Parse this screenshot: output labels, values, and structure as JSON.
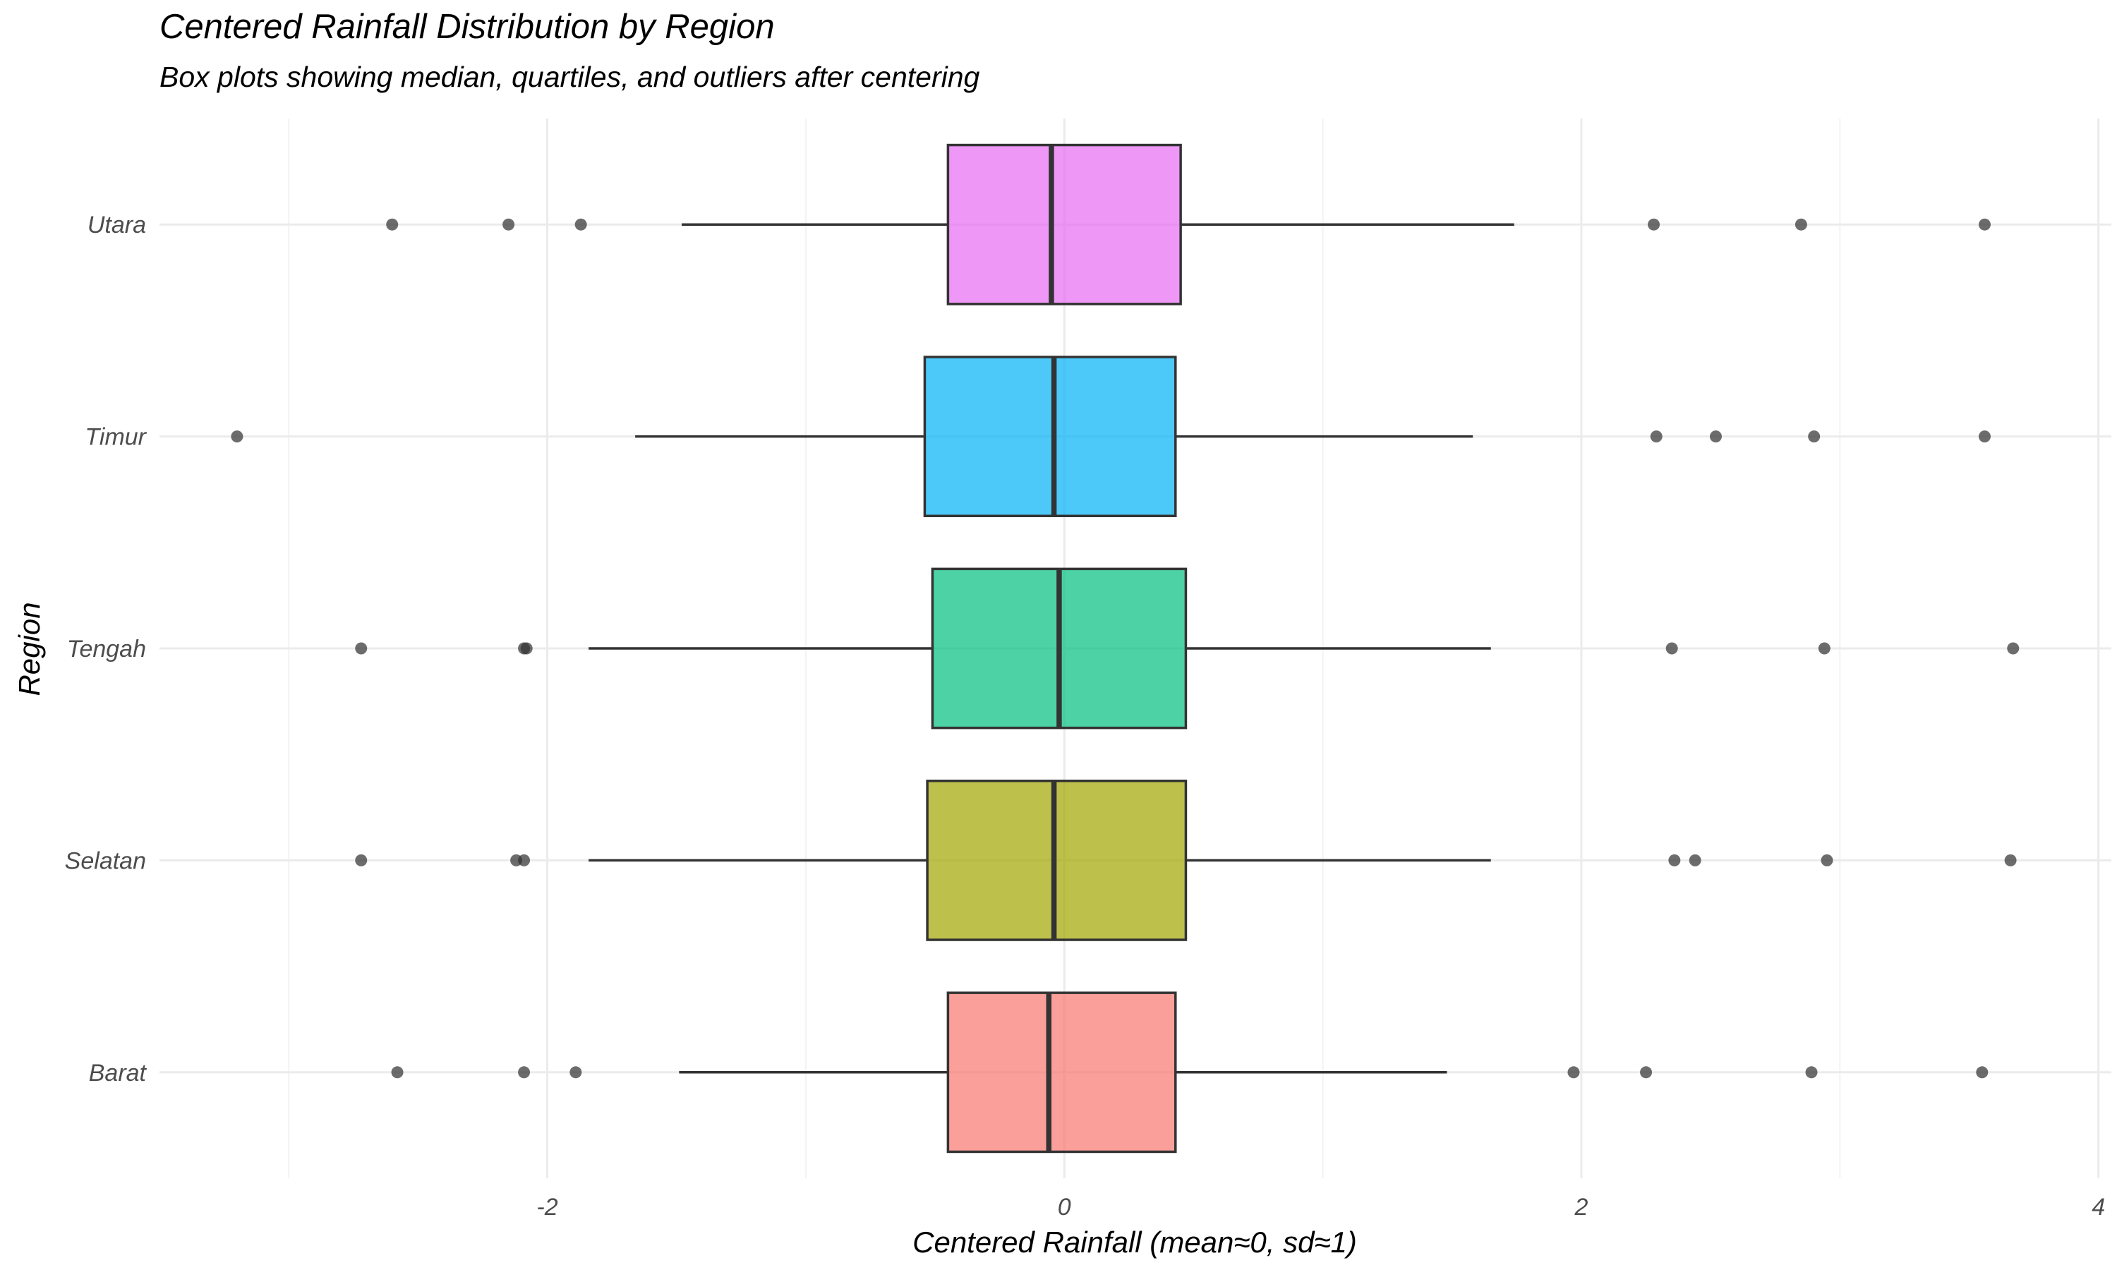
{
  "chart_data": {
    "type": "boxplot",
    "title": "Centered Rainfall Distribution by Region",
    "subtitle": "Box plots showing median, quartiles, and outliers after centering",
    "xlabel": "Centered Rainfall (mean≈0, sd≈1)",
    "ylabel": "Region",
    "xlim": [
      -3.5,
      4.05
    ],
    "x_ticks": [
      -2,
      0,
      2,
      4
    ],
    "x_tick_labels": [
      "-2",
      "0",
      "2",
      "4"
    ],
    "grid": true,
    "legend": "none",
    "categories": [
      "Barat",
      "Selatan",
      "Tengah",
      "Timur",
      "Utara"
    ],
    "series": [
      {
        "region": "Barat",
        "color": "#F8766D",
        "whisker_low": -1.49,
        "q1": -0.45,
        "median": -0.06,
        "q3": 0.43,
        "whisker_high": 1.48,
        "outliers": [
          -2.58,
          -2.09,
          -1.89,
          1.97,
          2.25,
          2.89,
          3.55
        ]
      },
      {
        "region": "Selatan",
        "color": "#A3A500",
        "whisker_low": -1.84,
        "q1": -0.53,
        "median": -0.04,
        "q3": 0.47,
        "whisker_high": 1.65,
        "outliers": [
          -2.72,
          -2.12,
          -2.09,
          2.36,
          2.44,
          2.95,
          3.66
        ]
      },
      {
        "region": "Tengah",
        "color": "#00BF7D",
        "whisker_low": -1.84,
        "q1": -0.51,
        "median": -0.02,
        "q3": 0.47,
        "whisker_high": 1.65,
        "outliers": [
          -2.72,
          -2.09,
          -2.08,
          2.35,
          2.94,
          3.67
        ]
      },
      {
        "region": "Timur",
        "color": "#00B0F6",
        "whisker_low": -1.66,
        "q1": -0.54,
        "median": -0.04,
        "q3": 0.43,
        "whisker_high": 1.58,
        "outliers": [
          -3.2,
          2.29,
          2.52,
          2.9,
          3.56
        ]
      },
      {
        "region": "Utara",
        "color": "#E76BF3",
        "whisker_low": -1.48,
        "q1": -0.45,
        "median": -0.05,
        "q3": 0.45,
        "whisker_high": 1.74,
        "outliers": [
          -2.6,
          -2.15,
          -1.87,
          2.28,
          2.85,
          3.56
        ]
      }
    ]
  }
}
